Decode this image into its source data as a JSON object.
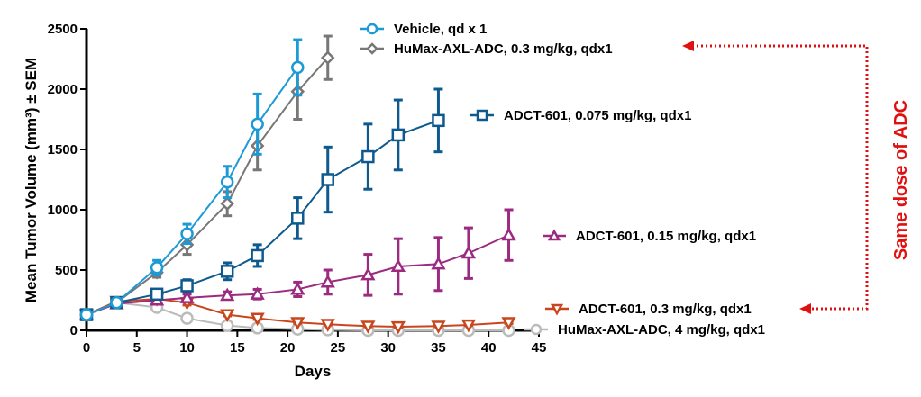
{
  "chart_data": {
    "type": "line",
    "title": "",
    "xlabel": "Days",
    "ylabel": "Mean Tumor Volume (mm³) ± SEM",
    "xlim": [
      0,
      45
    ],
    "ylim": [
      0,
      2500
    ],
    "xticks": [
      0,
      5,
      10,
      15,
      20,
      25,
      30,
      35,
      40,
      45
    ],
    "yticks": [
      0,
      500,
      1000,
      1500,
      2000,
      2500
    ],
    "grid": false,
    "legend_placement": "inline-right",
    "series": [
      {
        "name": "Vehicle, qd x 1",
        "color": "#1b9ad6",
        "marker": "circle",
        "x": [
          0,
          3,
          7,
          10,
          14,
          17,
          21
        ],
        "y": [
          130,
          230,
          520,
          800,
          1230,
          1710,
          2180
        ],
        "sem": [
          10,
          20,
          60,
          80,
          130,
          250,
          230
        ]
      },
      {
        "name": "HuMax-AXL-ADC, 0.3 mg/kg, qdx1",
        "color": "#777777",
        "marker": "diamond",
        "x": [
          0,
          3,
          7,
          10,
          14,
          17,
          21,
          24
        ],
        "y": [
          130,
          230,
          480,
          710,
          1050,
          1530,
          1980,
          2260
        ],
        "sem": [
          10,
          20,
          40,
          80,
          100,
          200,
          230,
          180
        ]
      },
      {
        "name": "ADCT-601, 0.075 mg/kg, qdx1",
        "color": "#0e5a8e",
        "marker": "square",
        "x": [
          0,
          3,
          7,
          10,
          14,
          17,
          21,
          24,
          28,
          31,
          35
        ],
        "y": [
          130,
          230,
          300,
          370,
          490,
          620,
          930,
          1250,
          1440,
          1620,
          1740
        ],
        "sem": [
          10,
          20,
          30,
          50,
          70,
          90,
          170,
          270,
          270,
          290,
          260
        ]
      },
      {
        "name": "ADCT-601, 0.15 mg/kg, qdx1",
        "color": "#9b2a80",
        "marker": "triangle-up",
        "x": [
          0,
          3,
          7,
          10,
          14,
          17,
          21,
          24,
          28,
          31,
          35,
          38,
          42
        ],
        "y": [
          130,
          220,
          250,
          270,
          290,
          300,
          340,
          400,
          460,
          530,
          550,
          640,
          790
        ],
        "sem": [
          10,
          20,
          30,
          30,
          30,
          40,
          60,
          100,
          170,
          230,
          220,
          210,
          210
        ]
      },
      {
        "name": "ADCT-601, 0.3 mg/kg, qdx1",
        "color": "#c8461e",
        "marker": "triangle-down",
        "x": [
          0,
          3,
          7,
          10,
          14,
          17,
          21,
          24,
          28,
          31,
          35,
          38,
          42
        ],
        "y": [
          130,
          240,
          260,
          230,
          130,
          100,
          65,
          50,
          35,
          30,
          35,
          45,
          65
        ],
        "sem": [
          10,
          20,
          20,
          20,
          10,
          10,
          8,
          5,
          5,
          5,
          5,
          5,
          8
        ]
      },
      {
        "name": "HuMax-AXL-ADC, 4 mg/kg, qdx1",
        "color": "#bbbbbb",
        "marker": "circle",
        "x": [
          0,
          3,
          7,
          10,
          14,
          17,
          21,
          24,
          28,
          31,
          35,
          38,
          42
        ],
        "y": [
          130,
          230,
          190,
          100,
          40,
          20,
          10,
          5,
          0,
          0,
          0,
          0,
          0
        ],
        "sem": [
          10,
          20,
          15,
          10,
          5,
          5,
          3,
          2,
          0,
          0,
          0,
          0,
          0
        ]
      }
    ],
    "annotation": {
      "text": "Same dose of ADC",
      "color": "#e01010",
      "links": [
        "HuMax-AXL-ADC, 0.3 mg/kg, qdx1",
        "ADCT-601, 0.3 mg/kg, qdx1"
      ]
    }
  }
}
